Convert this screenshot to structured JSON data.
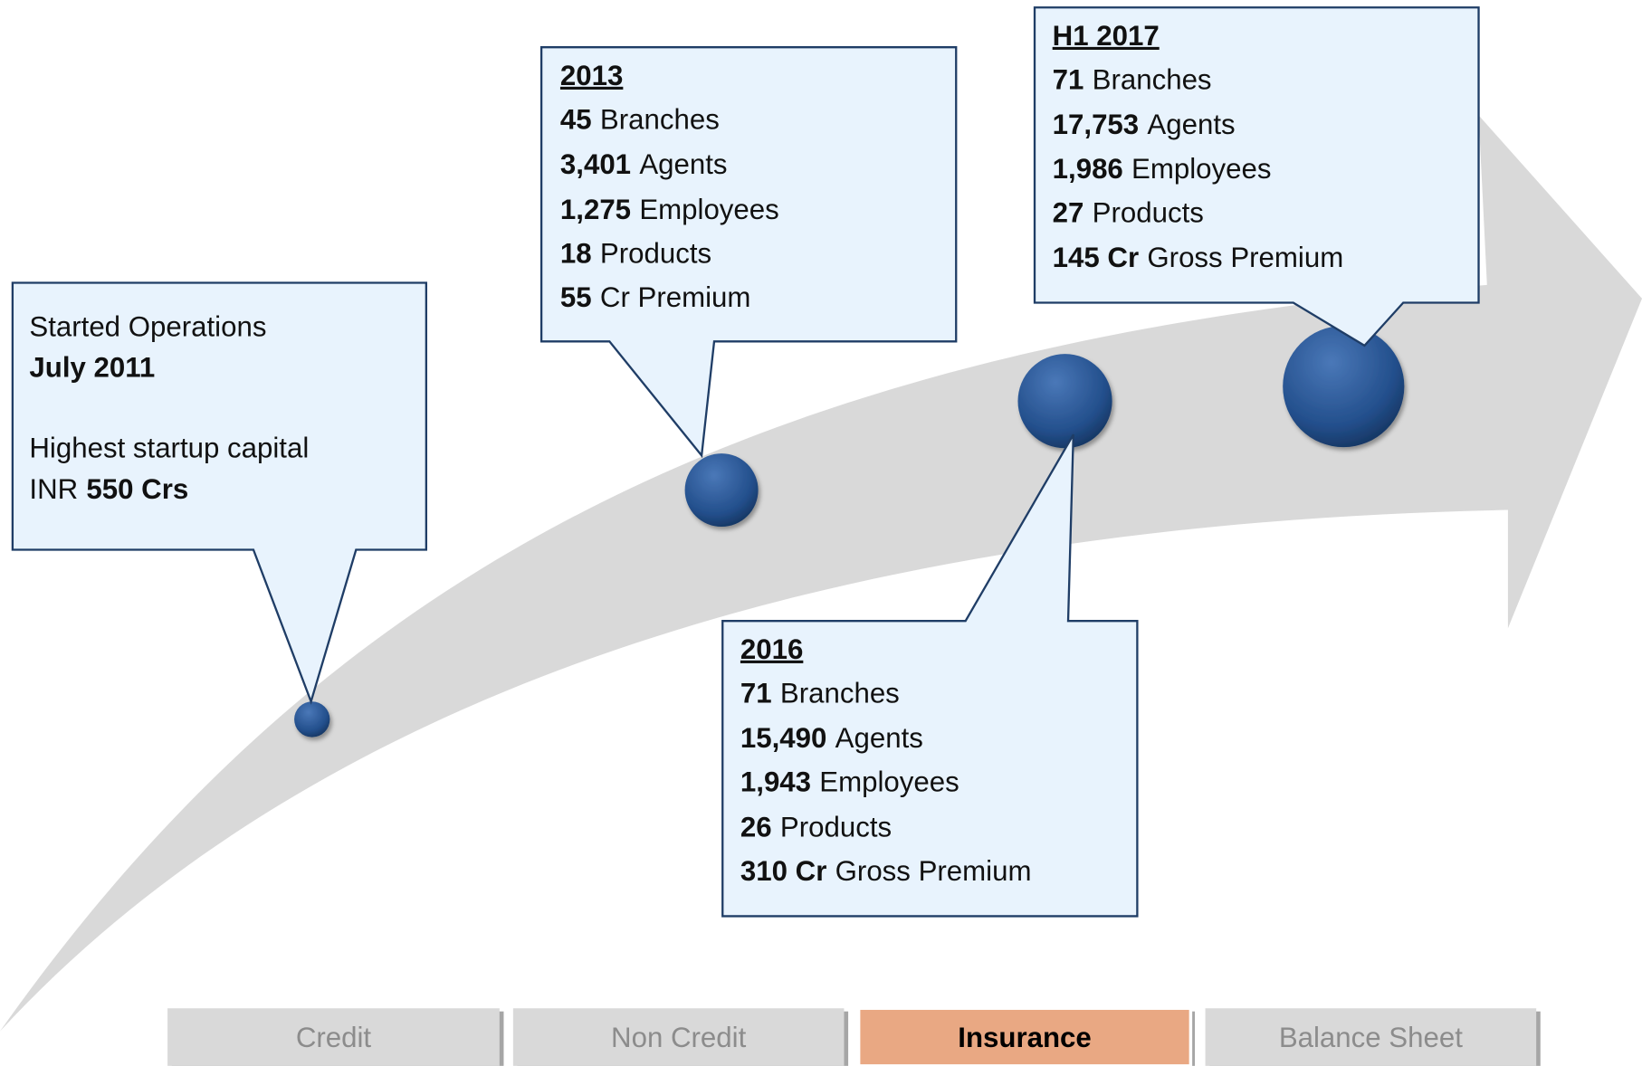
{
  "callouts": [
    {
      "lines": [
        [
          {
            "t": "Started Operations"
          }
        ],
        [
          {
            "t": "July 2011",
            "b": true
          }
        ],
        [],
        [
          {
            "t": "Highest startup capital"
          }
        ],
        [
          {
            "t": "INR"
          },
          {
            "t": "550 Crs",
            "b": true
          }
        ]
      ]
    },
    {
      "heading": "2013",
      "lines": [
        [
          {
            "t": "45",
            "b": true
          },
          {
            "t": "Branches"
          }
        ],
        [
          {
            "t": "3,401",
            "b": true
          },
          {
            "t": "Agents"
          }
        ],
        [
          {
            "t": "1,275",
            "b": true
          },
          {
            "t": "Employees"
          }
        ],
        [
          {
            "t": "18",
            "b": true
          },
          {
            "t": "Products"
          }
        ],
        [
          {
            "t": "55",
            "b": true
          },
          {
            "t": "Cr Premium"
          }
        ]
      ]
    },
    {
      "heading": "H1 2017",
      "lines": [
        [
          {
            "t": "71",
            "b": true
          },
          {
            "t": "Branches"
          }
        ],
        [
          {
            "t": "17,753",
            "b": true
          },
          {
            "t": "Agents"
          }
        ],
        [
          {
            "t": "1,986",
            "b": true
          },
          {
            "t": "Employees"
          }
        ],
        [
          {
            "t": "27",
            "b": true
          },
          {
            "t": "Products"
          }
        ],
        [
          {
            "t": "145 Cr",
            "b": true
          },
          {
            "t": "Gross Premium"
          }
        ]
      ]
    },
    {
      "heading": "2016",
      "lines": [
        [
          {
            "t": "71",
            "b": true
          },
          {
            "t": "Branches"
          }
        ],
        [
          {
            "t": "15,490",
            "b": true
          },
          {
            "t": "Agents"
          }
        ],
        [
          {
            "t": "1,943",
            "b": true
          },
          {
            "t": "Employees"
          }
        ],
        [
          {
            "t": "26",
            "b": true
          },
          {
            "t": "Products"
          }
        ],
        [
          {
            "t": "310 Cr",
            "b": true
          },
          {
            "t": "Gross Premium"
          }
        ]
      ]
    }
  ],
  "tabs": [
    {
      "label": "Credit"
    },
    {
      "label": "Non Credit"
    },
    {
      "label": "Insurance",
      "active": true
    },
    {
      "label": "Balance Sheet"
    }
  ]
}
